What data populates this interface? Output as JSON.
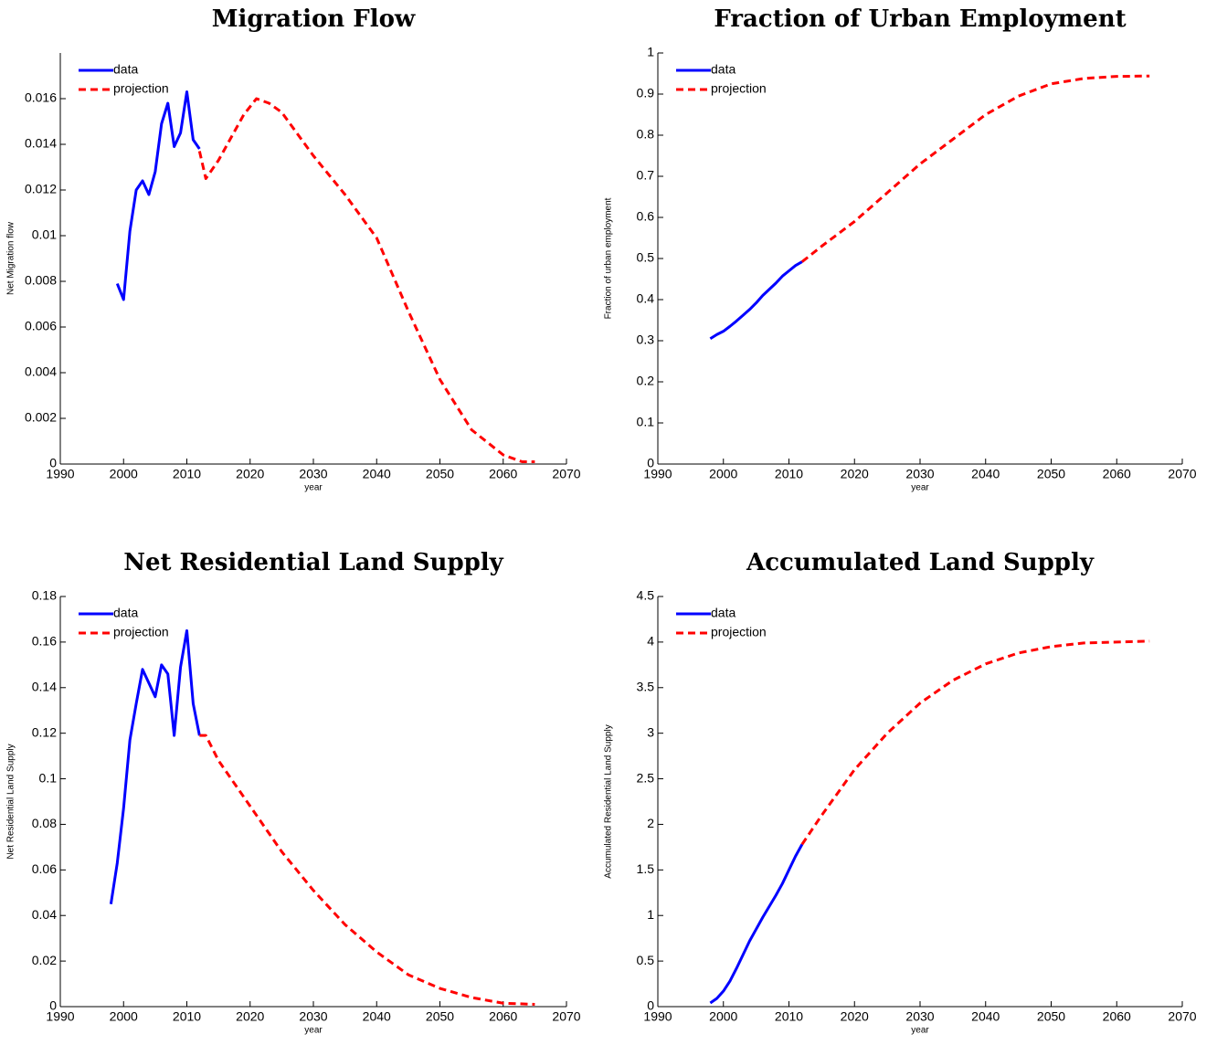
{
  "chart_data": [
    {
      "type": "line",
      "title": "Migration Flow",
      "xlabel": "year",
      "ylabel": "Net Migration flow",
      "xlim": [
        1990,
        2070
      ],
      "xticks": [
        1990,
        2000,
        2010,
        2020,
        2030,
        2040,
        2050,
        2060,
        2070
      ],
      "ylim": [
        0,
        0.018
      ],
      "yticks": [
        0,
        0.002,
        0.004,
        0.006,
        0.008,
        0.01,
        0.012,
        0.014,
        0.016
      ],
      "legend": "upper left",
      "series": [
        {
          "name": "data",
          "color": "#0000ff",
          "dashed": false,
          "x": [
            1999,
            2000,
            2001,
            2002,
            2003,
            2004,
            2005,
            2006,
            2007,
            2008,
            2009,
            2010,
            2011,
            2012
          ],
          "values": [
            0.0079,
            0.0072,
            0.0102,
            0.012,
            0.0124,
            0.0118,
            0.0128,
            0.0149,
            0.0158,
            0.0139,
            0.0145,
            0.0163,
            0.0142,
            0.0138
          ]
        },
        {
          "name": "projection",
          "color": "#ff0000",
          "dashed": true,
          "x": [
            2012,
            2013,
            2015,
            2017,
            2019,
            2021,
            2023,
            2025,
            2030,
            2035,
            2040,
            2045,
            2050,
            2055,
            2060,
            2063,
            2065
          ],
          "values": [
            0.0137,
            0.0125,
            0.0133,
            0.0143,
            0.0153,
            0.016,
            0.0158,
            0.0154,
            0.0135,
            0.0118,
            0.0099,
            0.0067,
            0.0037,
            0.0015,
            0.0004,
            0.0001,
            0.0001
          ]
        }
      ]
    },
    {
      "type": "line",
      "title": "Fraction of Urban Employment",
      "xlabel": "year",
      "ylabel": "Fraction of urban employment",
      "xlim": [
        1990,
        2070
      ],
      "xticks": [
        1990,
        2000,
        2010,
        2020,
        2030,
        2040,
        2050,
        2060,
        2070
      ],
      "ylim": [
        0,
        1
      ],
      "yticks": [
        0,
        0.1,
        0.2,
        0.3,
        0.4,
        0.5,
        0.6,
        0.7,
        0.8,
        0.9,
        1
      ],
      "legend": "upper left",
      "series": [
        {
          "name": "data",
          "color": "#0000ff",
          "dashed": false,
          "x": [
            1998,
            1999,
            2000,
            2001,
            2002,
            2003,
            2004,
            2005,
            2006,
            2007,
            2008,
            2009,
            2010,
            2011,
            2012
          ],
          "values": [
            0.305,
            0.315,
            0.323,
            0.335,
            0.348,
            0.362,
            0.376,
            0.392,
            0.41,
            0.425,
            0.44,
            0.457,
            0.47,
            0.483,
            0.492
          ]
        },
        {
          "name": "projection",
          "color": "#ff0000",
          "dashed": true,
          "x": [
            2012,
            2015,
            2020,
            2025,
            2030,
            2035,
            2040,
            2045,
            2050,
            2055,
            2060,
            2065
          ],
          "values": [
            0.492,
            0.53,
            0.59,
            0.66,
            0.73,
            0.79,
            0.85,
            0.895,
            0.925,
            0.938,
            0.943,
            0.944
          ]
        }
      ]
    },
    {
      "type": "line",
      "title": "Net Residential Land Supply",
      "xlabel": "year",
      "ylabel": "Net Residential Land Supply",
      "xlim": [
        1990,
        2070
      ],
      "xticks": [
        1990,
        2000,
        2010,
        2020,
        2030,
        2040,
        2050,
        2060,
        2070
      ],
      "ylim": [
        0,
        0.18
      ],
      "yticks": [
        0,
        0.02,
        0.04,
        0.06,
        0.08,
        0.1,
        0.12,
        0.14,
        0.16,
        0.18
      ],
      "legend": "upper left",
      "series": [
        {
          "name": "data",
          "color": "#0000ff",
          "dashed": false,
          "x": [
            1998,
            1999,
            2000,
            2001,
            2002,
            2003,
            2004,
            2005,
            2006,
            2007,
            2008,
            2009,
            2010,
            2011,
            2012
          ],
          "values": [
            0.045,
            0.063,
            0.087,
            0.117,
            0.133,
            0.148,
            0.142,
            0.136,
            0.15,
            0.146,
            0.119,
            0.149,
            0.165,
            0.133,
            0.119
          ]
        },
        {
          "name": "projection",
          "color": "#ff0000",
          "dashed": true,
          "x": [
            2012,
            2013,
            2015,
            2020,
            2025,
            2030,
            2035,
            2040,
            2045,
            2050,
            2055,
            2060,
            2065
          ],
          "values": [
            0.119,
            0.119,
            0.108,
            0.088,
            0.068,
            0.051,
            0.036,
            0.024,
            0.014,
            0.008,
            0.004,
            0.0015,
            0.001
          ]
        }
      ]
    },
    {
      "type": "line",
      "title": "Accumulated Land Supply",
      "xlabel": "year",
      "ylabel": "Accumulated Residential Land Supply",
      "xlim": [
        1990,
        2070
      ],
      "xticks": [
        1990,
        2000,
        2010,
        2020,
        2030,
        2040,
        2050,
        2060,
        2070
      ],
      "ylim": [
        0,
        4.5
      ],
      "yticks": [
        0,
        0.5,
        1,
        1.5,
        2,
        2.5,
        3,
        3.5,
        4,
        4.5
      ],
      "legend": "upper left",
      "series": [
        {
          "name": "data",
          "color": "#0000ff",
          "dashed": false,
          "x": [
            1998,
            1999,
            2000,
            2001,
            2002,
            2003,
            2004,
            2005,
            2006,
            2007,
            2008,
            2009,
            2010,
            2011,
            2012
          ],
          "values": [
            0.04,
            0.09,
            0.17,
            0.28,
            0.42,
            0.57,
            0.72,
            0.85,
            0.98,
            1.1,
            1.22,
            1.35,
            1.5,
            1.65,
            1.78
          ]
        },
        {
          "name": "projection",
          "color": "#ff0000",
          "dashed": true,
          "x": [
            2012,
            2015,
            2020,
            2025,
            2030,
            2035,
            2040,
            2045,
            2050,
            2055,
            2060,
            2065
          ],
          "values": [
            1.78,
            2.1,
            2.6,
            3.0,
            3.33,
            3.58,
            3.76,
            3.88,
            3.95,
            3.99,
            4.0,
            4.01
          ]
        }
      ]
    }
  ]
}
